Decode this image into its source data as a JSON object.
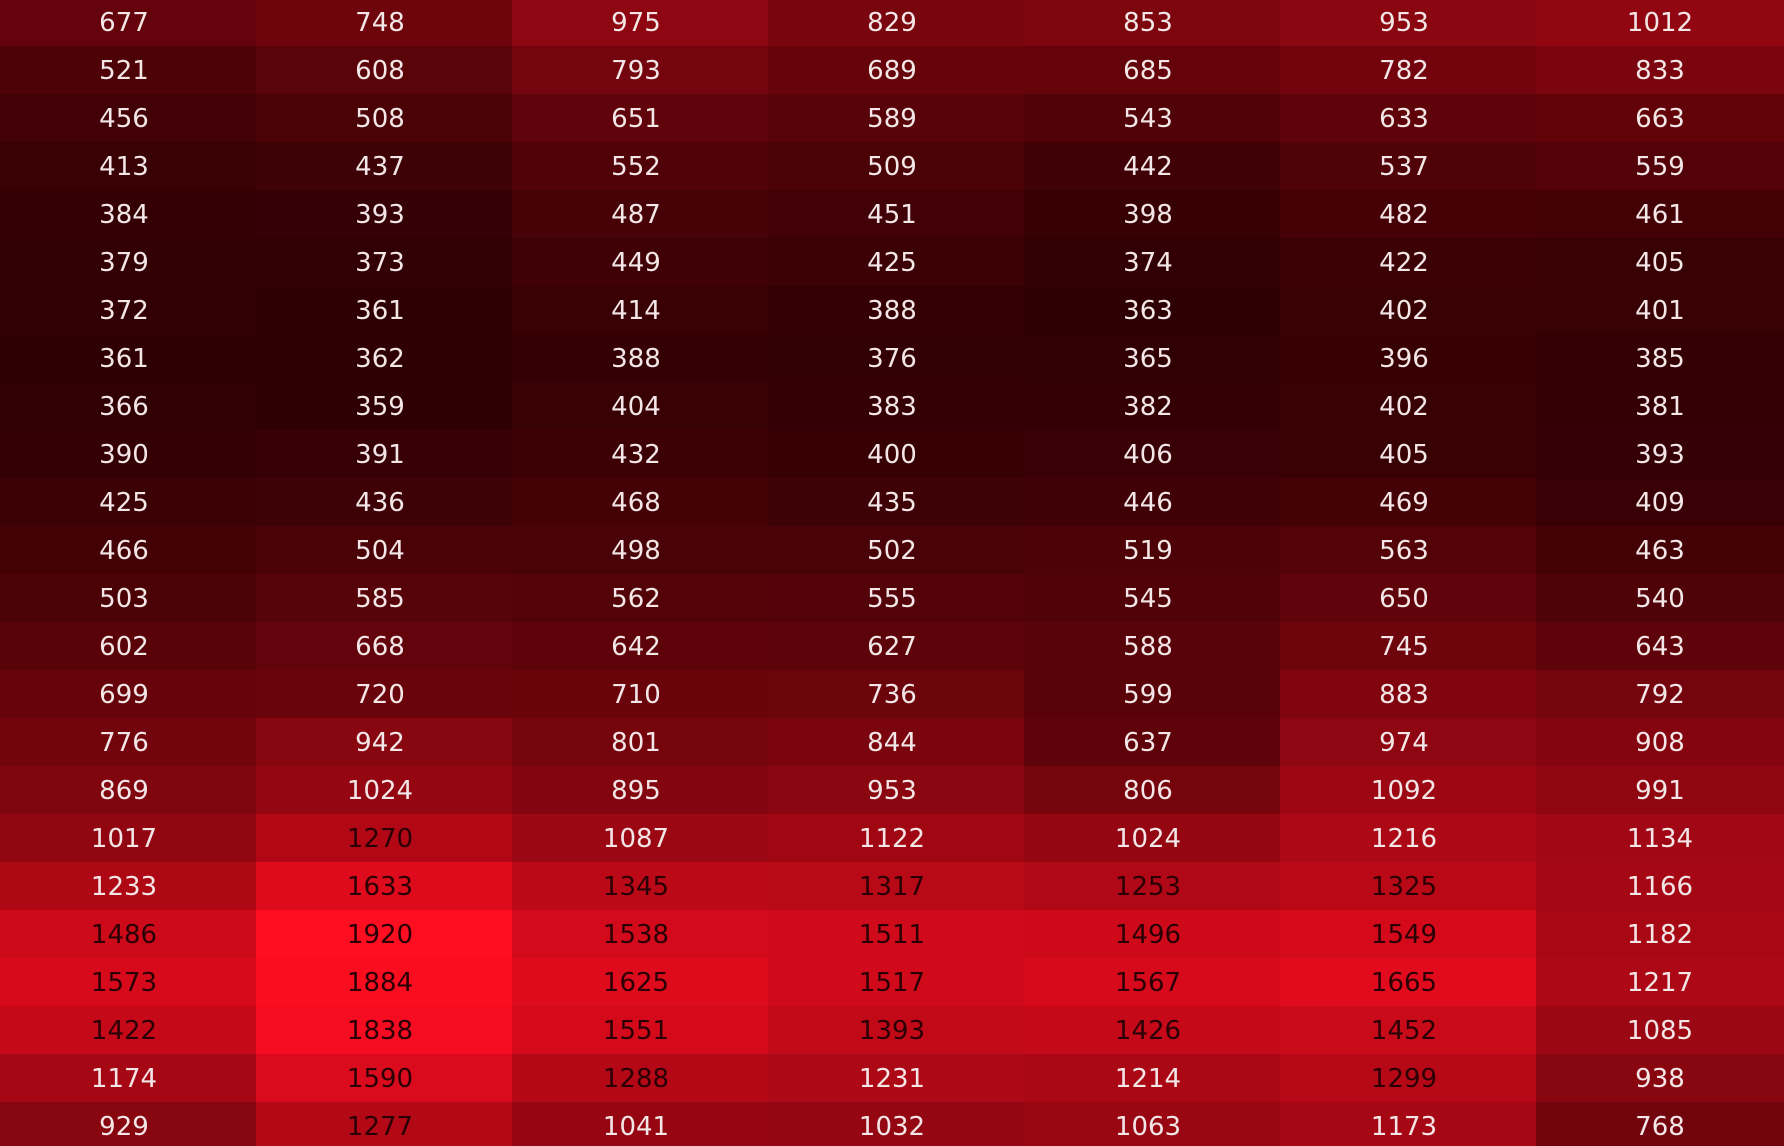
{
  "chart_data": {
    "type": "heatmap",
    "title": "",
    "xlabel": "",
    "ylabel": "",
    "color_scale": {
      "low": "#2e0003",
      "high": "#ff0d21"
    },
    "values": [
      [
        677,
        748,
        975,
        829,
        853,
        953,
        1012
      ],
      [
        521,
        608,
        793,
        689,
        685,
        782,
        833
      ],
      [
        456,
        508,
        651,
        589,
        543,
        633,
        663
      ],
      [
        413,
        437,
        552,
        509,
        442,
        537,
        559
      ],
      [
        384,
        393,
        487,
        451,
        398,
        482,
        461
      ],
      [
        379,
        373,
        449,
        425,
        374,
        422,
        405
      ],
      [
        372,
        361,
        414,
        388,
        363,
        402,
        401
      ],
      [
        361,
        362,
        388,
        376,
        365,
        396,
        385
      ],
      [
        366,
        359,
        404,
        383,
        382,
        402,
        381
      ],
      [
        390,
        391,
        432,
        400,
        406,
        405,
        393
      ],
      [
        425,
        436,
        468,
        435,
        446,
        469,
        409
      ],
      [
        466,
        504,
        498,
        502,
        519,
        563,
        463
      ],
      [
        503,
        585,
        562,
        555,
        545,
        650,
        540
      ],
      [
        602,
        668,
        642,
        627,
        588,
        745,
        643
      ],
      [
        699,
        720,
        710,
        736,
        599,
        883,
        792
      ],
      [
        776,
        942,
        801,
        844,
        637,
        974,
        908
      ],
      [
        869,
        1024,
        895,
        953,
        806,
        1092,
        991
      ],
      [
        1017,
        1270,
        1087,
        1122,
        1024,
        1216,
        1134
      ],
      [
        1233,
        1633,
        1345,
        1317,
        1253,
        1325,
        1166
      ],
      [
        1486,
        1920,
        1538,
        1511,
        1496,
        1549,
        1182
      ],
      [
        1573,
        1884,
        1625,
        1517,
        1567,
        1665,
        1217
      ],
      [
        1422,
        1838,
        1551,
        1393,
        1426,
        1452,
        1085
      ],
      [
        1174,
        1590,
        1288,
        1231,
        1214,
        1299,
        938
      ],
      [
        929,
        1277,
        1041,
        1032,
        1063,
        1173,
        768
      ]
    ]
  }
}
